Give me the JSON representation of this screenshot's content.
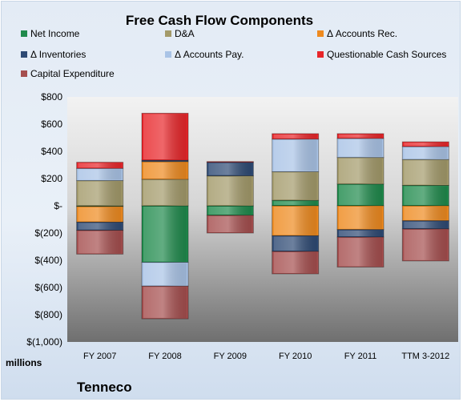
{
  "chart_data": {
    "type": "bar",
    "stacked": true,
    "title": "Free Cash Flow Components",
    "categories": [
      "FY 2007",
      "FY 2008",
      "FY 2009",
      "FY 2010",
      "FY 2011",
      "TTM 3-2012"
    ],
    "ylim": [
      -1000,
      800
    ],
    "yticks": [
      800,
      600,
      400,
      200,
      0,
      -200,
      -400,
      -600,
      -800,
      -1000
    ],
    "ytick_labels": [
      "$800",
      "$600",
      "$400",
      "$200",
      "$-",
      "$(200)",
      "$(400)",
      "$(600)",
      "$(800)",
      "$(1,000)"
    ],
    "yunit_label": "millions",
    "legend_position": "top",
    "grid": false,
    "series": [
      {
        "name": "Net Income",
        "color": "#1f8a4c",
        "values": [
          -5,
          -415,
          -70,
          40,
          160,
          150
        ]
      },
      {
        "name": "D&A",
        "color": "#a39a6a",
        "values": [
          185,
          195,
          220,
          210,
          195,
          190
        ]
      },
      {
        "name": "Δ Accounts Rec.",
        "color": "#ee8a1f",
        "values": [
          -115,
          130,
          0,
          -220,
          -175,
          -110
        ]
      },
      {
        "name": "Δ Inventories",
        "color": "#2e4a74",
        "values": [
          -60,
          10,
          100,
          -115,
          -55,
          -60
        ]
      },
      {
        "name": "Δ Accounts Pay.",
        "color": "#a9c3e6",
        "values": [
          90,
          -175,
          0,
          240,
          140,
          95
        ]
      },
      {
        "name": "Questionable Cash Sources",
        "color": "#e8262a",
        "values": [
          45,
          345,
          5,
          40,
          35,
          35
        ]
      },
      {
        "name": "Capital Expenditure",
        "color": "#a54e4e",
        "values": [
          -175,
          -240,
          -130,
          -165,
          -220,
          -235
        ]
      }
    ]
  },
  "footer": {
    "company": "Tenneco"
  }
}
